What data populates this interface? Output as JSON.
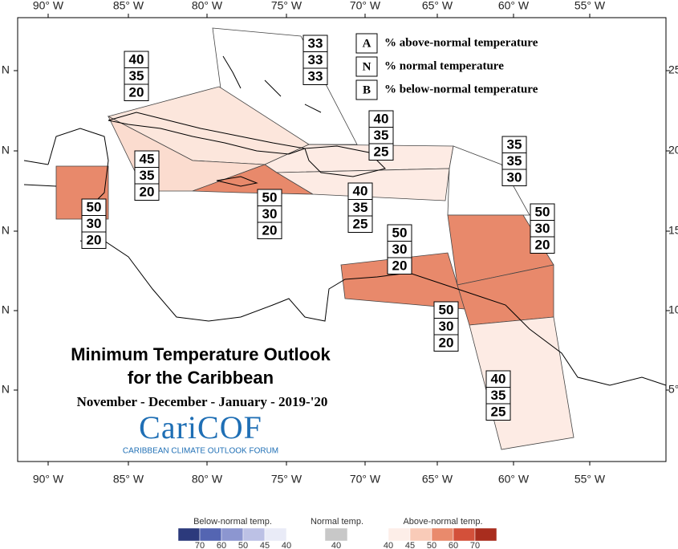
{
  "map": {
    "title_line1": "Minimum Temperature Outlook",
    "title_line2": "for the Caribbean",
    "period": "November - December - January - 2019-'20",
    "logo": "CariCOF",
    "logo_subtitle": "CARIBBEAN CLIMATE OUTLOOK FORUM",
    "lon_labels": [
      "90° W",
      "85° W",
      "80° W",
      "75° W",
      "70° W",
      "65° W",
      "60° W",
      "55° W"
    ],
    "lat_labels_left": [
      "N",
      "N",
      "N",
      "N",
      "N"
    ],
    "lat_labels_right": [
      "25°",
      "20°",
      "15°",
      "10°",
      "5°"
    ],
    "key": [
      {
        "letter": "A",
        "text": "% above-normal temperature"
      },
      {
        "letter": "N",
        "text": "% normal temperature"
      },
      {
        "letter": "B",
        "text": "% below-normal temperature"
      }
    ],
    "regions": [
      {
        "values": [
          33,
          33,
          33
        ],
        "color": "#ffffff"
      },
      {
        "values": [
          40,
          35,
          20
        ],
        "color": "#fce6dc"
      },
      {
        "values": [
          45,
          35,
          20
        ],
        "color": "#fbdccf"
      },
      {
        "values": [
          50,
          30,
          20
        ],
        "color": "#e8896b"
      },
      {
        "values": [
          50,
          30,
          20
        ],
        "color": "#e8896b"
      },
      {
        "values": [
          40,
          35,
          25
        ],
        "color": "#fdebe4"
      },
      {
        "values": [
          40,
          35,
          25
        ],
        "color": "#fdebe4"
      },
      {
        "values": [
          35,
          35,
          30
        ],
        "color": "#ffffff"
      },
      {
        "values": [
          50,
          30,
          20
        ],
        "color": "#e8896b"
      },
      {
        "values": [
          50,
          30,
          20
        ],
        "color": "#e8896b"
      },
      {
        "values": [
          50,
          30,
          20
        ],
        "color": "#e8896b"
      },
      {
        "values": [
          40,
          35,
          25
        ],
        "color": "#fdebe4"
      }
    ],
    "legend": {
      "below_title": "Below-normal temp.",
      "below": [
        {
          "value": 70,
          "color": "#2c3a7c"
        },
        {
          "value": 60,
          "color": "#5465b2"
        },
        {
          "value": 50,
          "color": "#8c96d0"
        },
        {
          "value": 45,
          "color": "#bcc1e5"
        },
        {
          "value": 40,
          "color": "#e9ebf7"
        }
      ],
      "normal_title": "Normal temp.",
      "normal": [
        {
          "value": 40,
          "color": "#c8c8c8"
        }
      ],
      "above_title": "Above-normal temp.",
      "above": [
        {
          "value": 40,
          "color": "#fdeee8"
        },
        {
          "value": 45,
          "color": "#f9cbb8"
        },
        {
          "value": 50,
          "color": "#e98a6c"
        },
        {
          "value": 60,
          "color": "#d3503a"
        },
        {
          "value": 70,
          "color": "#a92d1e"
        }
      ]
    }
  }
}
